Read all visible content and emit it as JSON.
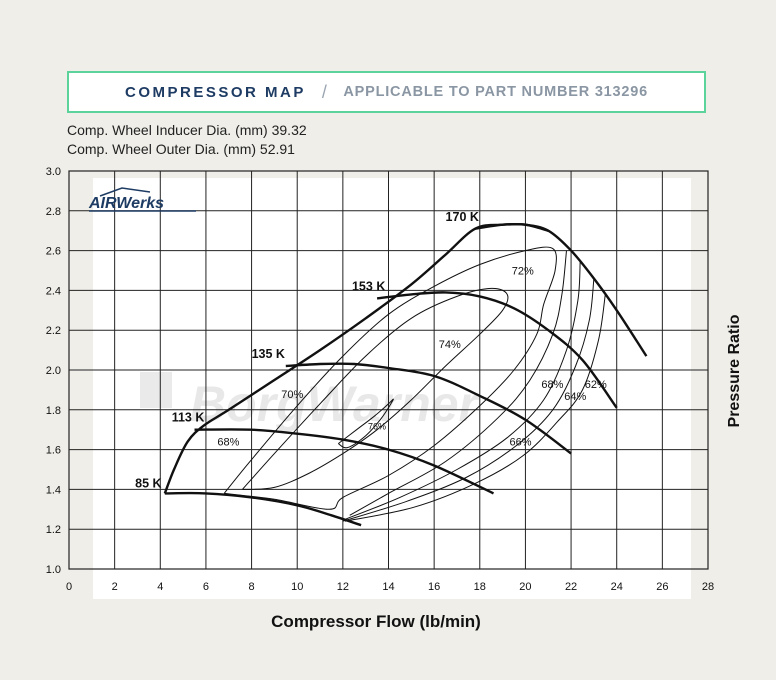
{
  "header": {
    "title": "COMPRESSOR MAP",
    "separator": "/",
    "subtitle": "APPLICABLE TO PART NUMBER 313296"
  },
  "specs": [
    "Comp. Wheel Inducer Dia. (mm) 39.32",
    "Comp. Wheel Outer Dia. (mm) 52.91"
  ],
  "logos": {
    "airwerks": "AIRWerks",
    "watermark": "BorgWarner"
  },
  "colors": {
    "header_border": "#5cd39a",
    "header_title": "#1d3b63",
    "header_subtitle": "#8a96a3",
    "line": "#111111",
    "grid": "#222222",
    "background": "#efeee9",
    "plot_background": "#ffffff"
  },
  "chart_data": {
    "type": "line",
    "xlabel": "Compressor Flow (lb/min)",
    "ylabel": "Pressure Ratio",
    "xlim": [
      0,
      28
    ],
    "ylim": [
      1.0,
      3.0
    ],
    "x_ticks": [
      "0",
      "2",
      "4",
      "6",
      "8",
      "10",
      "12",
      "14",
      "16",
      "18",
      "20",
      "22",
      "24",
      "26",
      "28"
    ],
    "y_ticks": [
      "1.0",
      "1.2",
      "1.4",
      "1.6",
      "1.8",
      "2.0",
      "2.2",
      "2.4",
      "2.6",
      "2.8",
      "3.0"
    ],
    "grid": true,
    "surge_line": [
      [
        4.2,
        1.38
      ],
      [
        4.6,
        1.5
      ],
      [
        5.2,
        1.64
      ],
      [
        5.9,
        1.72
      ],
      [
        7,
        1.8
      ],
      [
        9,
        1.95
      ],
      [
        11,
        2.1
      ],
      [
        13,
        2.26
      ],
      [
        15,
        2.43
      ],
      [
        16.5,
        2.58
      ],
      [
        17.8,
        2.71
      ],
      [
        19,
        2.73
      ],
      [
        20,
        2.73
      ],
      [
        21,
        2.7
      ]
    ],
    "speed_lines": [
      {
        "name": "85 K",
        "points": [
          [
            4.2,
            1.38
          ],
          [
            6,
            1.38
          ],
          [
            8,
            1.36
          ],
          [
            10,
            1.32
          ],
          [
            11.5,
            1.27
          ],
          [
            12.8,
            1.22
          ]
        ]
      },
      {
        "name": "113 K",
        "points": [
          [
            5.5,
            1.7
          ],
          [
            8,
            1.7
          ],
          [
            10,
            1.68
          ],
          [
            12,
            1.65
          ],
          [
            14,
            1.6
          ],
          [
            16,
            1.52
          ],
          [
            18.6,
            1.38
          ]
        ]
      },
      {
        "name": "135 K",
        "points": [
          [
            9.5,
            2.02
          ],
          [
            11,
            2.03
          ],
          [
            12.5,
            2.03
          ],
          [
            14,
            2.01
          ],
          [
            16,
            1.97
          ],
          [
            18,
            1.87
          ],
          [
            20,
            1.75
          ],
          [
            22,
            1.58
          ]
        ]
      },
      {
        "name": "153 K",
        "points": [
          [
            13.5,
            2.36
          ],
          [
            15,
            2.38
          ],
          [
            16.5,
            2.39
          ],
          [
            18,
            2.37
          ],
          [
            19.5,
            2.31
          ],
          [
            21,
            2.2
          ],
          [
            22.5,
            2.05
          ],
          [
            24,
            1.81
          ]
        ]
      },
      {
        "name": "170 K",
        "points": [
          [
            17.8,
            2.71
          ],
          [
            19,
            2.73
          ],
          [
            20,
            2.73
          ],
          [
            21,
            2.7
          ],
          [
            22,
            2.6
          ],
          [
            23,
            2.46
          ],
          [
            24,
            2.3
          ],
          [
            25.3,
            2.07
          ]
        ]
      }
    ],
    "efficiency_islands": [
      {
        "label": "76%",
        "label_at": [
          13.1,
          1.7
        ],
        "points": [
          [
            11.8,
            1.63
          ],
          [
            12.6,
            1.7
          ],
          [
            13.4,
            1.77
          ],
          [
            14,
            1.83
          ],
          [
            14.2,
            1.85
          ],
          [
            13.7,
            1.76
          ],
          [
            13,
            1.67
          ],
          [
            12.2,
            1.61
          ],
          [
            11.8,
            1.63
          ]
        ]
      },
      {
        "label": "74%",
        "label_at": [
          16.2,
          2.11
        ],
        "points": [
          [
            7.6,
            1.4
          ],
          [
            9,
            1.58
          ],
          [
            11,
            1.83
          ],
          [
            13,
            2.07
          ],
          [
            15,
            2.26
          ],
          [
            17,
            2.37
          ],
          [
            18.5,
            2.41
          ],
          [
            19.2,
            2.38
          ],
          [
            19,
            2.3
          ],
          [
            18,
            2.18
          ],
          [
            16.5,
            2.02
          ],
          [
            15,
            1.85
          ],
          [
            13.5,
            1.7
          ],
          [
            12,
            1.58
          ],
          [
            10.5,
            1.48
          ],
          [
            9,
            1.41
          ],
          [
            7.6,
            1.4
          ]
        ]
      },
      {
        "label": "72%",
        "label_at": [
          19.4,
          2.48
        ],
        "points": [
          [
            6.8,
            1.38
          ],
          [
            8,
            1.55
          ],
          [
            10,
            1.82
          ],
          [
            12,
            2.07
          ],
          [
            14,
            2.28
          ],
          [
            16,
            2.42
          ],
          [
            18,
            2.53
          ],
          [
            20,
            2.6
          ],
          [
            21.2,
            2.61
          ],
          [
            21.3,
            2.5
          ],
          [
            20.8,
            2.33
          ],
          [
            20.5,
            2.18
          ],
          [
            19.5,
            2
          ],
          [
            18,
            1.82
          ],
          [
            16,
            1.62
          ],
          [
            14,
            1.47
          ],
          [
            12,
            1.36
          ],
          [
            11.4,
            1.3
          ],
          [
            9,
            1.35
          ],
          [
            6.8,
            1.38
          ]
        ]
      },
      {
        "label": "70%",
        "label_at": [
          9.3,
          1.86
        ],
        "points": []
      },
      {
        "label": "68%",
        "label_at": [
          20.7,
          1.91
        ],
        "points": [
          [
            21.8,
            2.6
          ],
          [
            21.6,
            2.38
          ],
          [
            21.2,
            2.18
          ],
          [
            20.2,
            1.95
          ],
          [
            18.8,
            1.76
          ],
          [
            16.5,
            1.54
          ],
          [
            14,
            1.38
          ],
          [
            12.3,
            1.27
          ]
        ]
      },
      {
        "label": "68%",
        "label_at": [
          6.5,
          1.62
        ],
        "points": []
      },
      {
        "label": "66%",
        "label_at": [
          19.3,
          1.62
        ],
        "points": [
          [
            22.4,
            2.55
          ],
          [
            22.3,
            2.35
          ],
          [
            21.8,
            2.1
          ],
          [
            20.8,
            1.85
          ],
          [
            19.2,
            1.66
          ],
          [
            17,
            1.5
          ],
          [
            14.5,
            1.36
          ],
          [
            12.1,
            1.25
          ]
        ]
      },
      {
        "label": "64%",
        "label_at": [
          21.7,
          1.85
        ],
        "points": [
          [
            23,
            2.46
          ],
          [
            22.8,
            2.25
          ],
          [
            22.2,
            2.02
          ],
          [
            21.2,
            1.8
          ],
          [
            19.6,
            1.62
          ],
          [
            17.4,
            1.46
          ],
          [
            14.8,
            1.34
          ],
          [
            12,
            1.24
          ]
        ]
      },
      {
        "label": "62%",
        "label_at": [
          22.6,
          1.91
        ],
        "points": [
          [
            23.5,
            2.38
          ],
          [
            23.2,
            2.15
          ],
          [
            22.5,
            1.9
          ],
          [
            21.4,
            1.74
          ],
          [
            19.9,
            1.57
          ],
          [
            17.8,
            1.43
          ],
          [
            15.1,
            1.31
          ],
          [
            12.1,
            1.24
          ]
        ]
      }
    ],
    "speed_labels": [
      {
        "text": "170 K",
        "at": [
          16.5,
          2.75
        ]
      },
      {
        "text": "153 K",
        "at": [
          12.4,
          2.4
        ]
      },
      {
        "text": "135 K",
        "at": [
          8.0,
          2.06
        ]
      },
      {
        "text": "113 K",
        "at": [
          4.5,
          1.74
        ]
      },
      {
        "text": "85 K",
        "at": [
          2.9,
          1.41
        ]
      }
    ]
  }
}
